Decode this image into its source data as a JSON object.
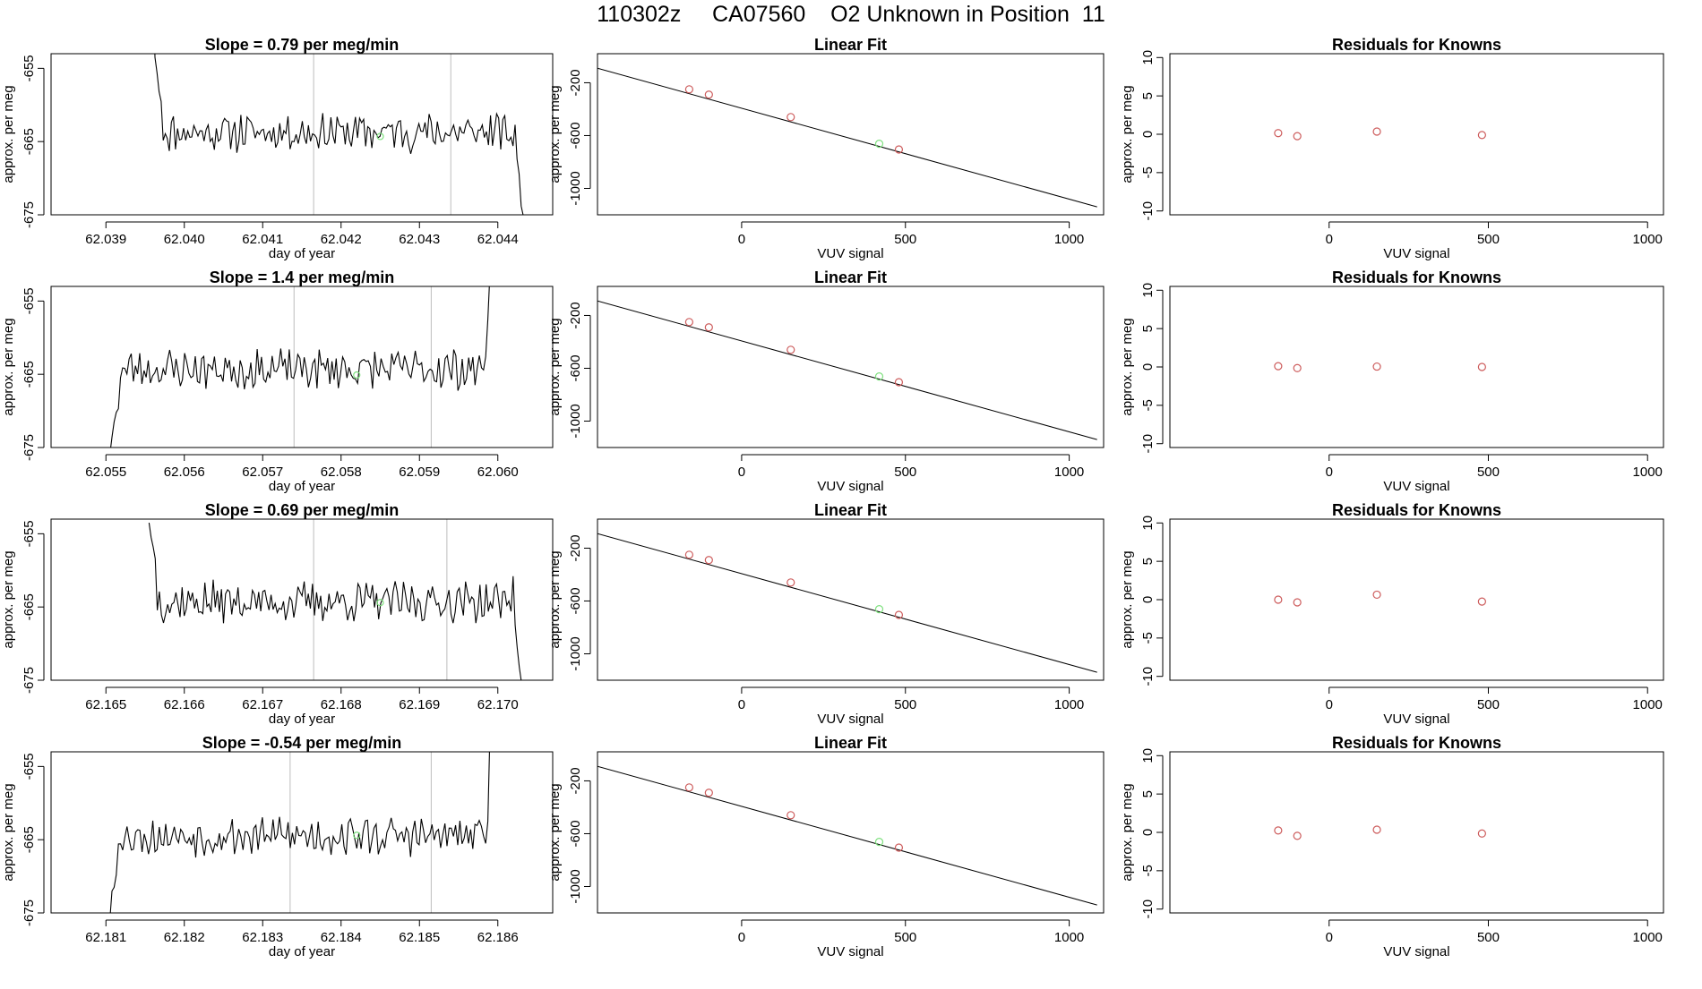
{
  "page": {
    "title": "110302z     CA07560    O2 Unknown in Position  11"
  },
  "colors": {
    "line": "#000000",
    "known_point": "#cd5c5c",
    "unknown_point": "#7fe07f",
    "vline": "#bebebe",
    "frame": "#000000"
  },
  "chart_data": [
    {
      "type": "line",
      "title": "Slope =  0.79  per meg/min",
      "xlabel": "day of year",
      "ylabel": "approx. per meg",
      "xlim": [
        62.0383,
        62.0447
      ],
      "ylim": [
        -675,
        -653
      ],
      "xticks": [
        "62.039",
        "62.040",
        "62.041",
        "62.042",
        "62.043",
        "62.044"
      ],
      "yticks": [
        "-655",
        "-665",
        "-675"
      ],
      "vlines": [
        62.04165,
        62.0434
      ],
      "unknown_point": {
        "x": 62.0425,
        "y": -664.3
      },
      "series": [
        {
          "x_start": 62.0396,
          "x_end": 62.04435,
          "start_values": [
            -644,
            -653.5,
            -655.6,
            -658.2,
            -659.5
          ],
          "end_values": [
            -664.4,
            -665.6,
            -662.7,
            -667.4,
            -669.4,
            -673.8,
            -675.1,
            -680
          ]
        }
      ],
      "noise": {
        "base": -663.7,
        "amplitude": 2.2,
        "n": 170,
        "seed": 11
      }
    },
    {
      "type": "scatter",
      "title": "Linear Fit",
      "xlabel": "VUV signal",
      "ylabel": "approx. per meg",
      "xlim": [
        -440,
        1105
      ],
      "ylim": [
        -1200,
        20
      ],
      "xticks": [
        "0",
        "500",
        "1000"
      ],
      "yticks": [
        "-200",
        "-600",
        "-1000"
      ],
      "fit_line": {
        "x": [
          -440,
          1085
        ],
        "y": [
          -90,
          -1140
        ]
      },
      "knowns": {
        "x": [
          -160,
          -100,
          150,
          480
        ],
        "y": [
          -250,
          -290,
          -460,
          -705
        ]
      },
      "unknown": {
        "x": 420,
        "y": -662
      }
    },
    {
      "type": "scatter",
      "title": "Residuals for Knowns",
      "xlabel": "VUV signal",
      "ylabel": "approx. per meg",
      "xlim": [
        -500,
        1050
      ],
      "ylim": [
        -10.5,
        10.5
      ],
      "xticks": [
        "0",
        "500",
        "1000"
      ],
      "yticks": [
        "10",
        "5",
        "0",
        "-5",
        "-10"
      ],
      "knowns": {
        "x": [
          -160,
          -100,
          150,
          480
        ],
        "y": [
          0.15,
          -0.25,
          0.35,
          -0.1
        ]
      }
    },
    {
      "type": "line",
      "title": "Slope =  1.4  per meg/min",
      "xlabel": "day of year",
      "ylabel": "approx. per meg",
      "xlim": [
        62.0543,
        62.0607
      ],
      "ylim": [
        -675,
        -653
      ],
      "xticks": [
        "62.055",
        "62.056",
        "62.057",
        "62.058",
        "62.059",
        "62.060"
      ],
      "yticks": [
        "-655",
        "-665",
        "-675"
      ],
      "vlines": [
        62.0574,
        62.05915
      ],
      "unknown_point": {
        "x": 62.0582,
        "y": -665.1
      },
      "series": [
        {
          "x_start": 62.05505,
          "x_end": 62.0599,
          "start_values": [
            -676,
            -673.6,
            -671.5,
            -670.2,
            -669.7
          ],
          "end_values": [
            -664.4,
            -662.6,
            -657.5,
            -651
          ]
        }
      ],
      "noise": {
        "base": -664.3,
        "amplitude": 2.3,
        "n": 170,
        "seed": 23
      }
    },
    {
      "type": "scatter",
      "title": "Linear Fit",
      "xlabel": "VUV signal",
      "ylabel": "approx. per meg",
      "xlim": [
        -440,
        1105
      ],
      "ylim": [
        -1200,
        20
      ],
      "xticks": [
        "0",
        "500",
        "1000"
      ],
      "yticks": [
        "-200",
        "-600",
        "-1000"
      ],
      "fit_line": {
        "x": [
          -440,
          1085
        ],
        "y": [
          -90,
          -1140
        ]
      },
      "knowns": {
        "x": [
          -160,
          -100,
          150,
          480
        ],
        "y": [
          -250,
          -290,
          -460,
          -705
        ]
      },
      "unknown": {
        "x": 420,
        "y": -662
      }
    },
    {
      "type": "scatter",
      "title": "Residuals for Knowns",
      "xlabel": "VUV signal",
      "ylabel": "approx. per meg",
      "xlim": [
        -500,
        1050
      ],
      "ylim": [
        -10.5,
        10.5
      ],
      "xticks": [
        "0",
        "500",
        "1000"
      ],
      "yticks": [
        "10",
        "5",
        "0",
        "-5",
        "-10"
      ],
      "knowns": {
        "x": [
          -160,
          -100,
          150,
          480
        ],
        "y": [
          0.1,
          -0.15,
          0.05,
          0.0
        ]
      }
    },
    {
      "type": "line",
      "title": "Slope =  0.69  per meg/min",
      "xlabel": "day of year",
      "ylabel": "approx. per meg",
      "xlim": [
        62.1643,
        62.1707
      ],
      "ylim": [
        -675,
        -653
      ],
      "xticks": [
        "62.165",
        "62.166",
        "62.167",
        "62.168",
        "62.169",
        "62.170"
      ],
      "yticks": [
        "-655",
        "-665",
        "-675"
      ],
      "vlines": [
        62.16765,
        62.16935
      ],
      "unknown_point": {
        "x": 62.1685,
        "y": -664.4
      },
      "series": [
        {
          "x_start": 62.16555,
          "x_end": 62.1703,
          "start_values": [
            -653.5,
            -655.5,
            -656.8,
            -658.4
          ],
          "end_values": [
            -664.2,
            -665.6,
            -660.8,
            -667.5,
            -670.6,
            -673.2,
            -675.2
          ]
        }
      ],
      "noise": {
        "base": -664.3,
        "amplitude": 2.3,
        "n": 170,
        "seed": 37
      }
    },
    {
      "type": "scatter",
      "title": "Linear Fit",
      "xlabel": "VUV signal",
      "ylabel": "approx. per meg",
      "xlim": [
        -440,
        1105
      ],
      "ylim": [
        -1200,
        20
      ],
      "xticks": [
        "0",
        "500",
        "1000"
      ],
      "yticks": [
        "-200",
        "-600",
        "-1000"
      ],
      "fit_line": {
        "x": [
          -440,
          1085
        ],
        "y": [
          -90,
          -1140
        ]
      },
      "knowns": {
        "x": [
          -160,
          -100,
          150,
          480
        ],
        "y": [
          -250,
          -290,
          -460,
          -705
        ]
      },
      "unknown": {
        "x": 420,
        "y": -662
      }
    },
    {
      "type": "scatter",
      "title": "Residuals for Knowns",
      "xlabel": "VUV signal",
      "ylabel": "approx. per meg",
      "xlim": [
        -500,
        1050
      ],
      "ylim": [
        -10.5,
        10.5
      ],
      "xticks": [
        "0",
        "500",
        "1000"
      ],
      "yticks": [
        "10",
        "5",
        "0",
        "-5",
        "-10"
      ],
      "knowns": {
        "x": [
          -160,
          -100,
          150,
          480
        ],
        "y": [
          0.0,
          -0.35,
          0.65,
          -0.25
        ]
      }
    },
    {
      "type": "line",
      "title": "Slope =  -0.54  per meg/min",
      "xlabel": "day of year",
      "ylabel": "approx. per meg",
      "xlim": [
        62.1803,
        62.1867
      ],
      "ylim": [
        -675,
        -653
      ],
      "xticks": [
        "62.181",
        "62.182",
        "62.183",
        "62.184",
        "62.185",
        "62.186"
      ],
      "yticks": [
        "-655",
        "-665",
        "-675"
      ],
      "vlines": [
        62.18335,
        62.18515
      ],
      "unknown_point": {
        "x": 62.1842,
        "y": -664.4
      },
      "series": [
        {
          "x_start": 62.18105,
          "x_end": 62.1859,
          "start_values": [
            -676,
            -672,
            -671.5,
            -669.8
          ],
          "end_values": [
            -664.5,
            -665.5,
            -662.5,
            -650
          ]
        }
      ],
      "noise": {
        "base": -664.5,
        "amplitude": 2.2,
        "n": 170,
        "seed": 53
      }
    },
    {
      "type": "scatter",
      "title": "Linear Fit",
      "xlabel": "VUV signal",
      "ylabel": "approx. per meg",
      "xlim": [
        -440,
        1105
      ],
      "ylim": [
        -1200,
        20
      ],
      "xticks": [
        "0",
        "500",
        "1000"
      ],
      "yticks": [
        "-200",
        "-600",
        "-1000"
      ],
      "fit_line": {
        "x": [
          -440,
          1085
        ],
        "y": [
          -90,
          -1140
        ]
      },
      "knowns": {
        "x": [
          -160,
          -100,
          150,
          480
        ],
        "y": [
          -250,
          -290,
          -460,
          -705
        ]
      },
      "unknown": {
        "x": 420,
        "y": -662
      }
    },
    {
      "type": "scatter",
      "title": "Residuals for Knowns",
      "xlabel": "VUV signal",
      "ylabel": "approx. per meg",
      "xlim": [
        -500,
        1050
      ],
      "ylim": [
        -10.5,
        10.5
      ],
      "xticks": [
        "0",
        "500",
        "1000"
      ],
      "yticks": [
        "10",
        "5",
        "0",
        "-5",
        "-10"
      ],
      "knowns": {
        "x": [
          -160,
          -100,
          150,
          480
        ],
        "y": [
          0.25,
          -0.45,
          0.35,
          -0.15
        ]
      }
    }
  ]
}
